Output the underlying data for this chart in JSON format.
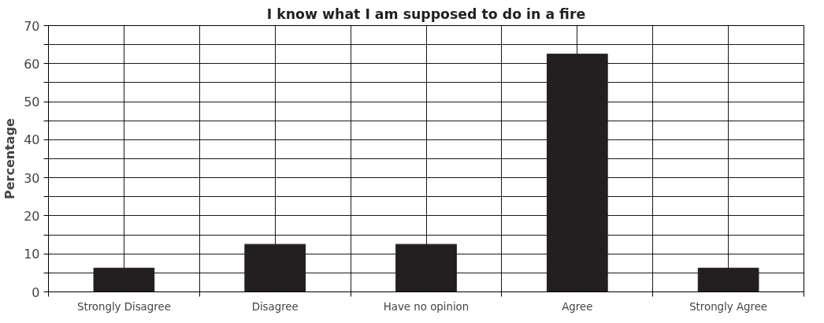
{
  "chart_data": {
    "type": "bar",
    "title": "I know what I am supposed to do in a fire",
    "ylabel": "Percentage",
    "categories": [
      "Strongly Disagree",
      "Disagree",
      "Have no opinion",
      "Agree",
      "Strongly Agree"
    ],
    "values": [
      6.25,
      12.5,
      12.5,
      62.5,
      6.25
    ],
    "color": "#231f20",
    "ylim": [
      0,
      70
    ],
    "yticks": [
      0,
      {
        "value": 5,
        "label": null
      },
      10,
      {
        "value": 15,
        "label": null
      },
      20,
      {
        "value": 25,
        "label": null
      },
      30,
      {
        "value": 35,
        "label": null
      },
      40,
      {
        "value": 45,
        "label": null
      },
      50,
      {
        "value": 55,
        "label": null
      },
      60,
      {
        "value": 65,
        "label": null
      },
      70
    ],
    "grid": true
  }
}
